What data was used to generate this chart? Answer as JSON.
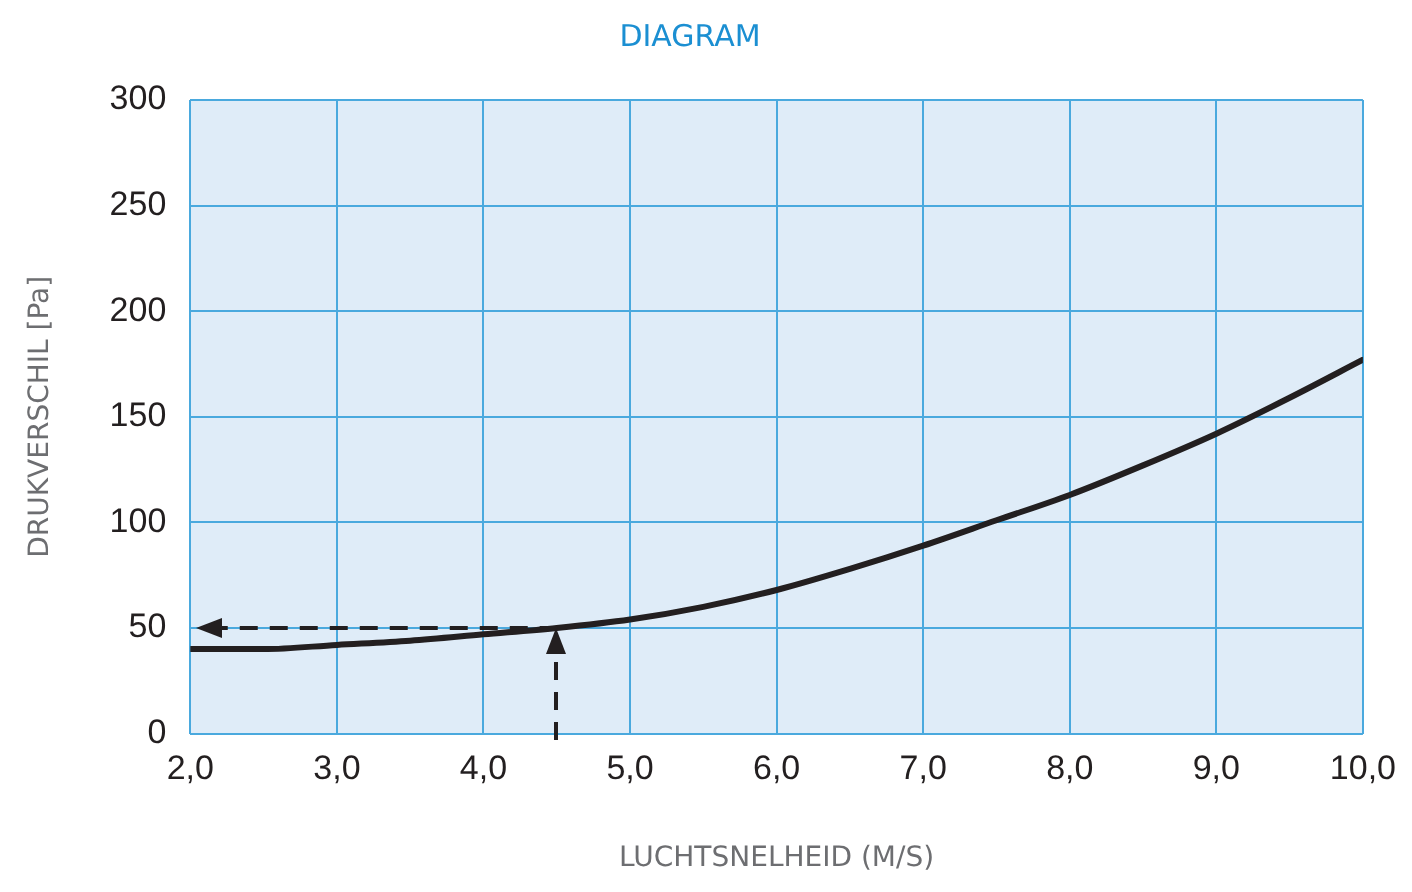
{
  "chart_data": {
    "type": "line",
    "title": "DIAGRAM",
    "xlabel": "LUCHTSNELHEID (M/S)",
    "ylabel": "DRUKVERSCHIL [Pa]",
    "xlim": [
      2,
      10
    ],
    "ylim": [
      0,
      300
    ],
    "xticks": [
      {
        "value": 2,
        "label": "2,0"
      },
      {
        "value": 3,
        "label": "3,0"
      },
      {
        "value": 4,
        "label": "4,0"
      },
      {
        "value": 5,
        "label": "5,0"
      },
      {
        "value": 6,
        "label": "6,0"
      },
      {
        "value": 7,
        "label": "7,0"
      },
      {
        "value": 8,
        "label": "8,0"
      },
      {
        "value": 9,
        "label": "9,0"
      },
      {
        "value": 10,
        "label": "10,0"
      }
    ],
    "yticks": [
      0,
      50,
      100,
      150,
      200,
      250,
      300
    ],
    "grid": true,
    "legend": false,
    "marker": "none",
    "series": [
      {
        "color": "#231f20",
        "x": [
          2,
          2.5,
          3,
          3.5,
          4,
          4.5,
          5,
          5.5,
          6,
          6.5,
          7,
          7.5,
          8,
          8.5,
          9,
          9.5,
          10
        ],
        "values": [
          40,
          40,
          42,
          44,
          47,
          50,
          54,
          60,
          68,
          78,
          89,
          101,
          113,
          127,
          142,
          159,
          177
        ]
      }
    ]
  }
}
